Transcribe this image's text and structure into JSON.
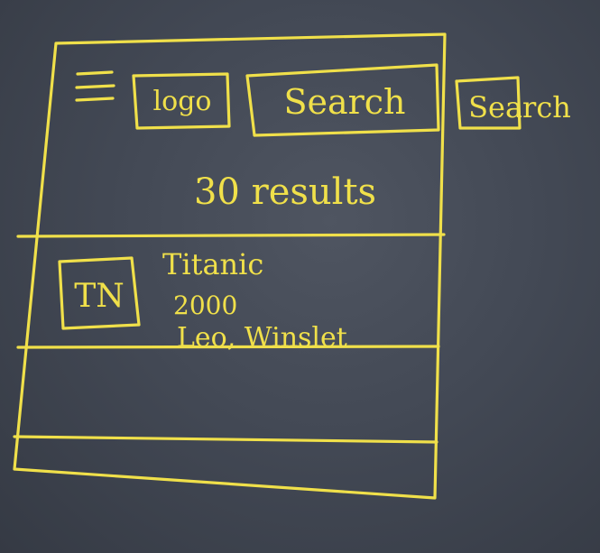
{
  "header": {
    "logo": "logo",
    "search_input": "Search",
    "search_button": "Search"
  },
  "results": {
    "count_text": "30 results"
  },
  "list": {
    "items": [
      {
        "thumbnail": "TN",
        "title": "Titanic",
        "year": "2000",
        "cast": "Leo, Winslet"
      }
    ]
  },
  "colors": {
    "chalk": "#f0e04a",
    "board": "#434955"
  }
}
